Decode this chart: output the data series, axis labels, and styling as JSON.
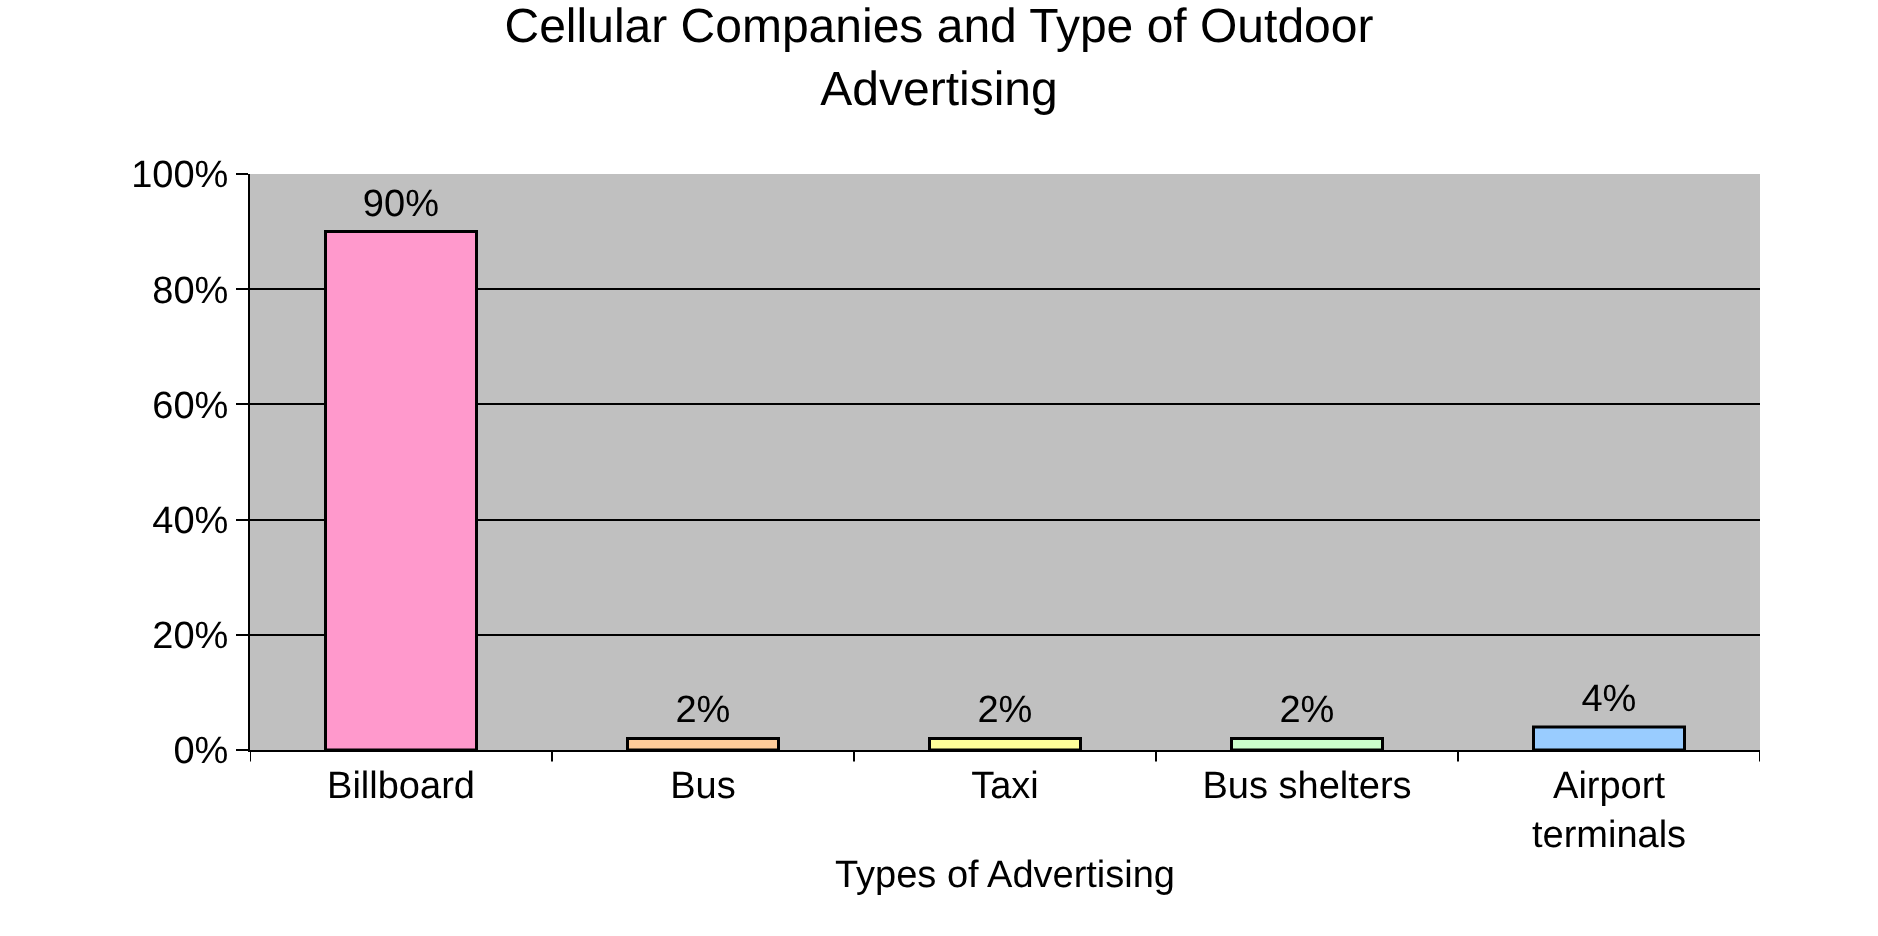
{
  "chart_data": {
    "type": "bar",
    "title": "Cellular Companies and Type of Outdoor Advertising",
    "xlabel": "Types of Advertising",
    "categories": [
      "Billboard",
      "Bus",
      "Taxi",
      "Bus shelters",
      "Airport terminals"
    ],
    "values": [
      90,
      2,
      2,
      2,
      4
    ],
    "colors": [
      "#ff99cc",
      "#ffcc99",
      "#ffff99",
      "#ccffcc",
      "#99ccff"
    ],
    "value_labels": [
      "90%",
      "2%",
      "2%",
      "2%",
      "4%"
    ],
    "ylim": [
      0,
      100
    ],
    "yticks": [
      {
        "value": 0,
        "label": "0%"
      },
      {
        "value": 20,
        "label": "20%"
      },
      {
        "value": 40,
        "label": "40%"
      },
      {
        "value": 60,
        "label": "60%"
      },
      {
        "value": 80,
        "label": "80%"
      },
      {
        "value": 100,
        "label": "100%"
      }
    ],
    "grid": "y",
    "legend": false
  }
}
